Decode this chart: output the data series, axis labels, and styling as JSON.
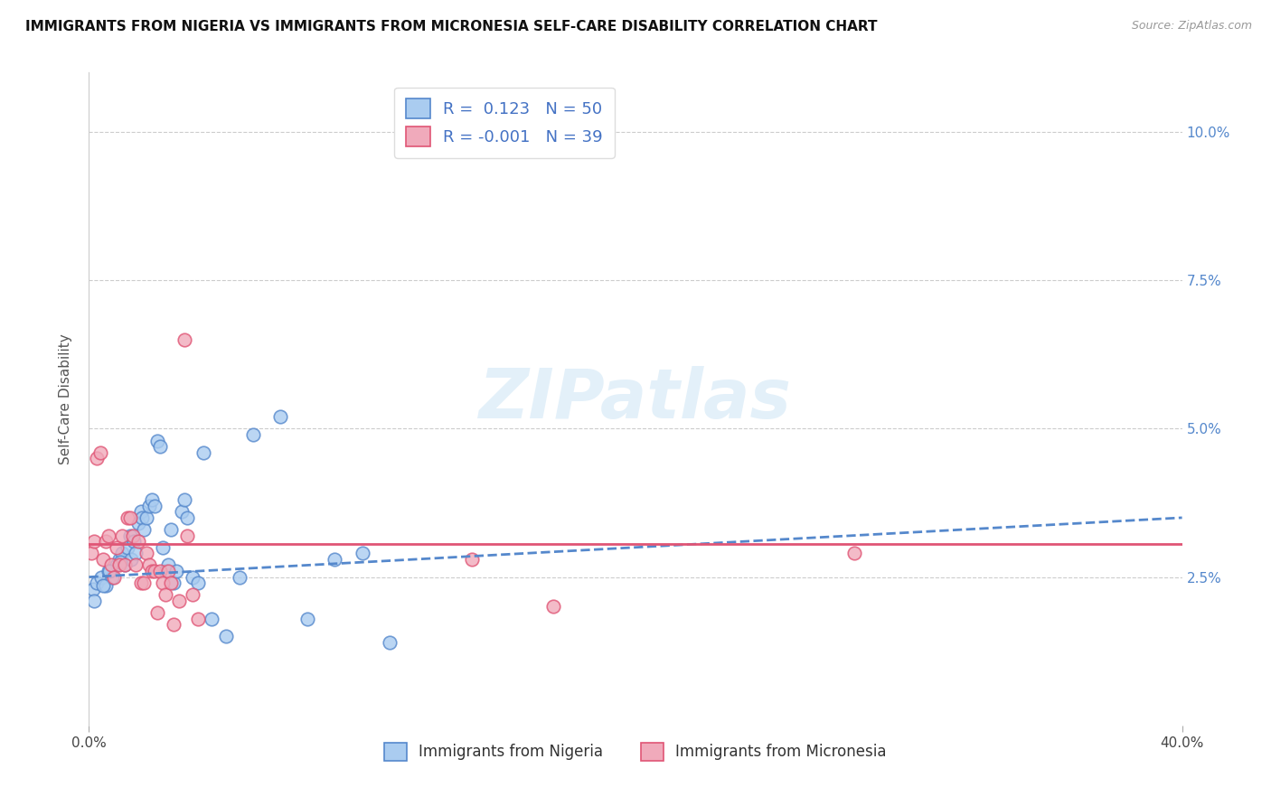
{
  "title": "IMMIGRANTS FROM NIGERIA VS IMMIGRANTS FROM MICRONESIA SELF-CARE DISABILITY CORRELATION CHART",
  "source": "Source: ZipAtlas.com",
  "ylabel": "Self-Care Disability",
  "r_nigeria": 0.123,
  "n_nigeria": 50,
  "r_micronesia": -0.001,
  "n_micronesia": 39,
  "legend_label_nigeria": "Immigrants from Nigeria",
  "legend_label_micronesia": "Immigrants from Micronesia",
  "color_nigeria": "#aaccf0",
  "color_micronesia": "#f0aabb",
  "color_nigeria_line": "#5588cc",
  "color_micronesia_line": "#e05575",
  "watermark_color": "#ddeeff",
  "xmin": 0.0,
  "xmax": 40.0,
  "ymin": 0.0,
  "ymax": 11.0,
  "ytick_positions": [
    2.5,
    5.0,
    7.5,
    10.0
  ],
  "ytick_labels": [
    "2.5%",
    "5.0%",
    "7.5%",
    "10.0%"
  ],
  "nigeria_x": [
    0.15,
    0.3,
    0.45,
    0.6,
    0.7,
    0.85,
    1.0,
    1.1,
    1.2,
    1.3,
    1.4,
    1.5,
    1.55,
    1.65,
    1.7,
    1.8,
    1.9,
    1.95,
    2.0,
    2.1,
    2.2,
    2.3,
    2.4,
    2.5,
    2.6,
    2.7,
    2.8,
    2.9,
    3.0,
    3.1,
    3.2,
    3.4,
    3.5,
    3.6,
    3.8,
    4.0,
    4.2,
    4.5,
    5.0,
    5.5,
    6.0,
    7.0,
    8.0,
    9.0,
    10.0,
    11.0,
    0.2,
    0.5,
    0.75,
    1.15
  ],
  "nigeria_y": [
    2.3,
    2.4,
    2.5,
    2.35,
    2.6,
    2.5,
    2.7,
    2.8,
    2.9,
    2.7,
    3.0,
    3.2,
    2.8,
    3.1,
    2.9,
    3.4,
    3.6,
    3.5,
    3.3,
    3.5,
    3.7,
    3.8,
    3.7,
    4.8,
    4.7,
    3.0,
    2.6,
    2.7,
    3.3,
    2.4,
    2.6,
    3.6,
    3.8,
    3.5,
    2.5,
    2.4,
    4.6,
    1.8,
    1.5,
    2.5,
    4.9,
    5.2,
    1.8,
    2.8,
    2.9,
    1.4,
    2.1,
    2.35,
    2.6,
    2.75
  ],
  "micronesia_x": [
    0.1,
    0.2,
    0.3,
    0.4,
    0.5,
    0.6,
    0.7,
    0.8,
    0.9,
    1.0,
    1.1,
    1.2,
    1.3,
    1.4,
    1.5,
    1.6,
    1.7,
    1.8,
    1.9,
    2.0,
    2.1,
    2.2,
    2.3,
    2.4,
    2.5,
    2.6,
    2.7,
    2.8,
    2.9,
    3.0,
    3.1,
    3.3,
    3.5,
    3.6,
    14.0,
    17.0,
    28.0,
    3.8,
    4.0
  ],
  "micronesia_y": [
    2.9,
    3.1,
    4.5,
    4.6,
    2.8,
    3.1,
    3.2,
    2.7,
    2.5,
    3.0,
    2.7,
    3.2,
    2.7,
    3.5,
    3.5,
    3.2,
    2.7,
    3.1,
    2.4,
    2.4,
    2.9,
    2.7,
    2.6,
    2.6,
    1.9,
    2.6,
    2.4,
    2.2,
    2.6,
    2.4,
    1.7,
    2.1,
    6.5,
    3.2,
    2.8,
    2.0,
    2.9,
    2.2,
    1.8
  ],
  "ng_line_x0": 0.0,
  "ng_line_x1": 40.0,
  "ng_line_y0": 2.5,
  "ng_line_y1": 3.5,
  "mc_line_x0": 0.0,
  "mc_line_x1": 40.0,
  "mc_line_y0": 3.05,
  "mc_line_y1": 3.05
}
